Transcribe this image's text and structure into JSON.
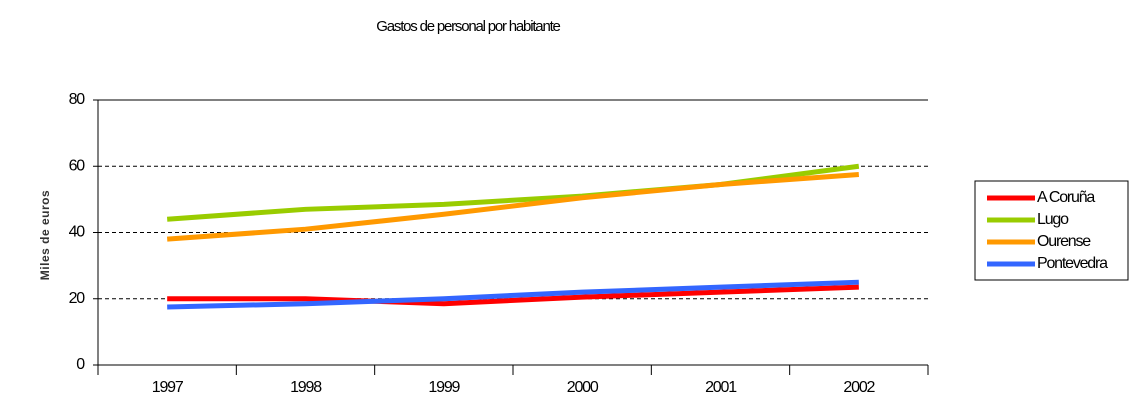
{
  "chart_data": {
    "type": "line",
    "title": "Gastos de personal por habitante",
    "y_label": "Miles de euros",
    "categories": [
      "1997",
      "1998",
      "1999",
      "2000",
      "2001",
      "2002"
    ],
    "series": [
      {
        "name": "A Coruña",
        "color": "#ff0000",
        "values": [
          20,
          20,
          18.5,
          20.5,
          22,
          23.5
        ]
      },
      {
        "name": "Lugo",
        "color": "#99cc00",
        "values": [
          44,
          47,
          48.5,
          51,
          54.5,
          60
        ]
      },
      {
        "name": "Ourense",
        "color": "#ff9900",
        "values": [
          38,
          41,
          45.5,
          50.5,
          54.5,
          57.5
        ]
      },
      {
        "name": "Pontevedra",
        "color": "#3366ff",
        "values": [
          17.5,
          18.5,
          20,
          22,
          23.5,
          25
        ]
      }
    ],
    "ylim": [
      0,
      80
    ],
    "yticks": [
      0,
      20,
      40,
      60,
      80
    ],
    "grid": true,
    "legend": "right"
  }
}
